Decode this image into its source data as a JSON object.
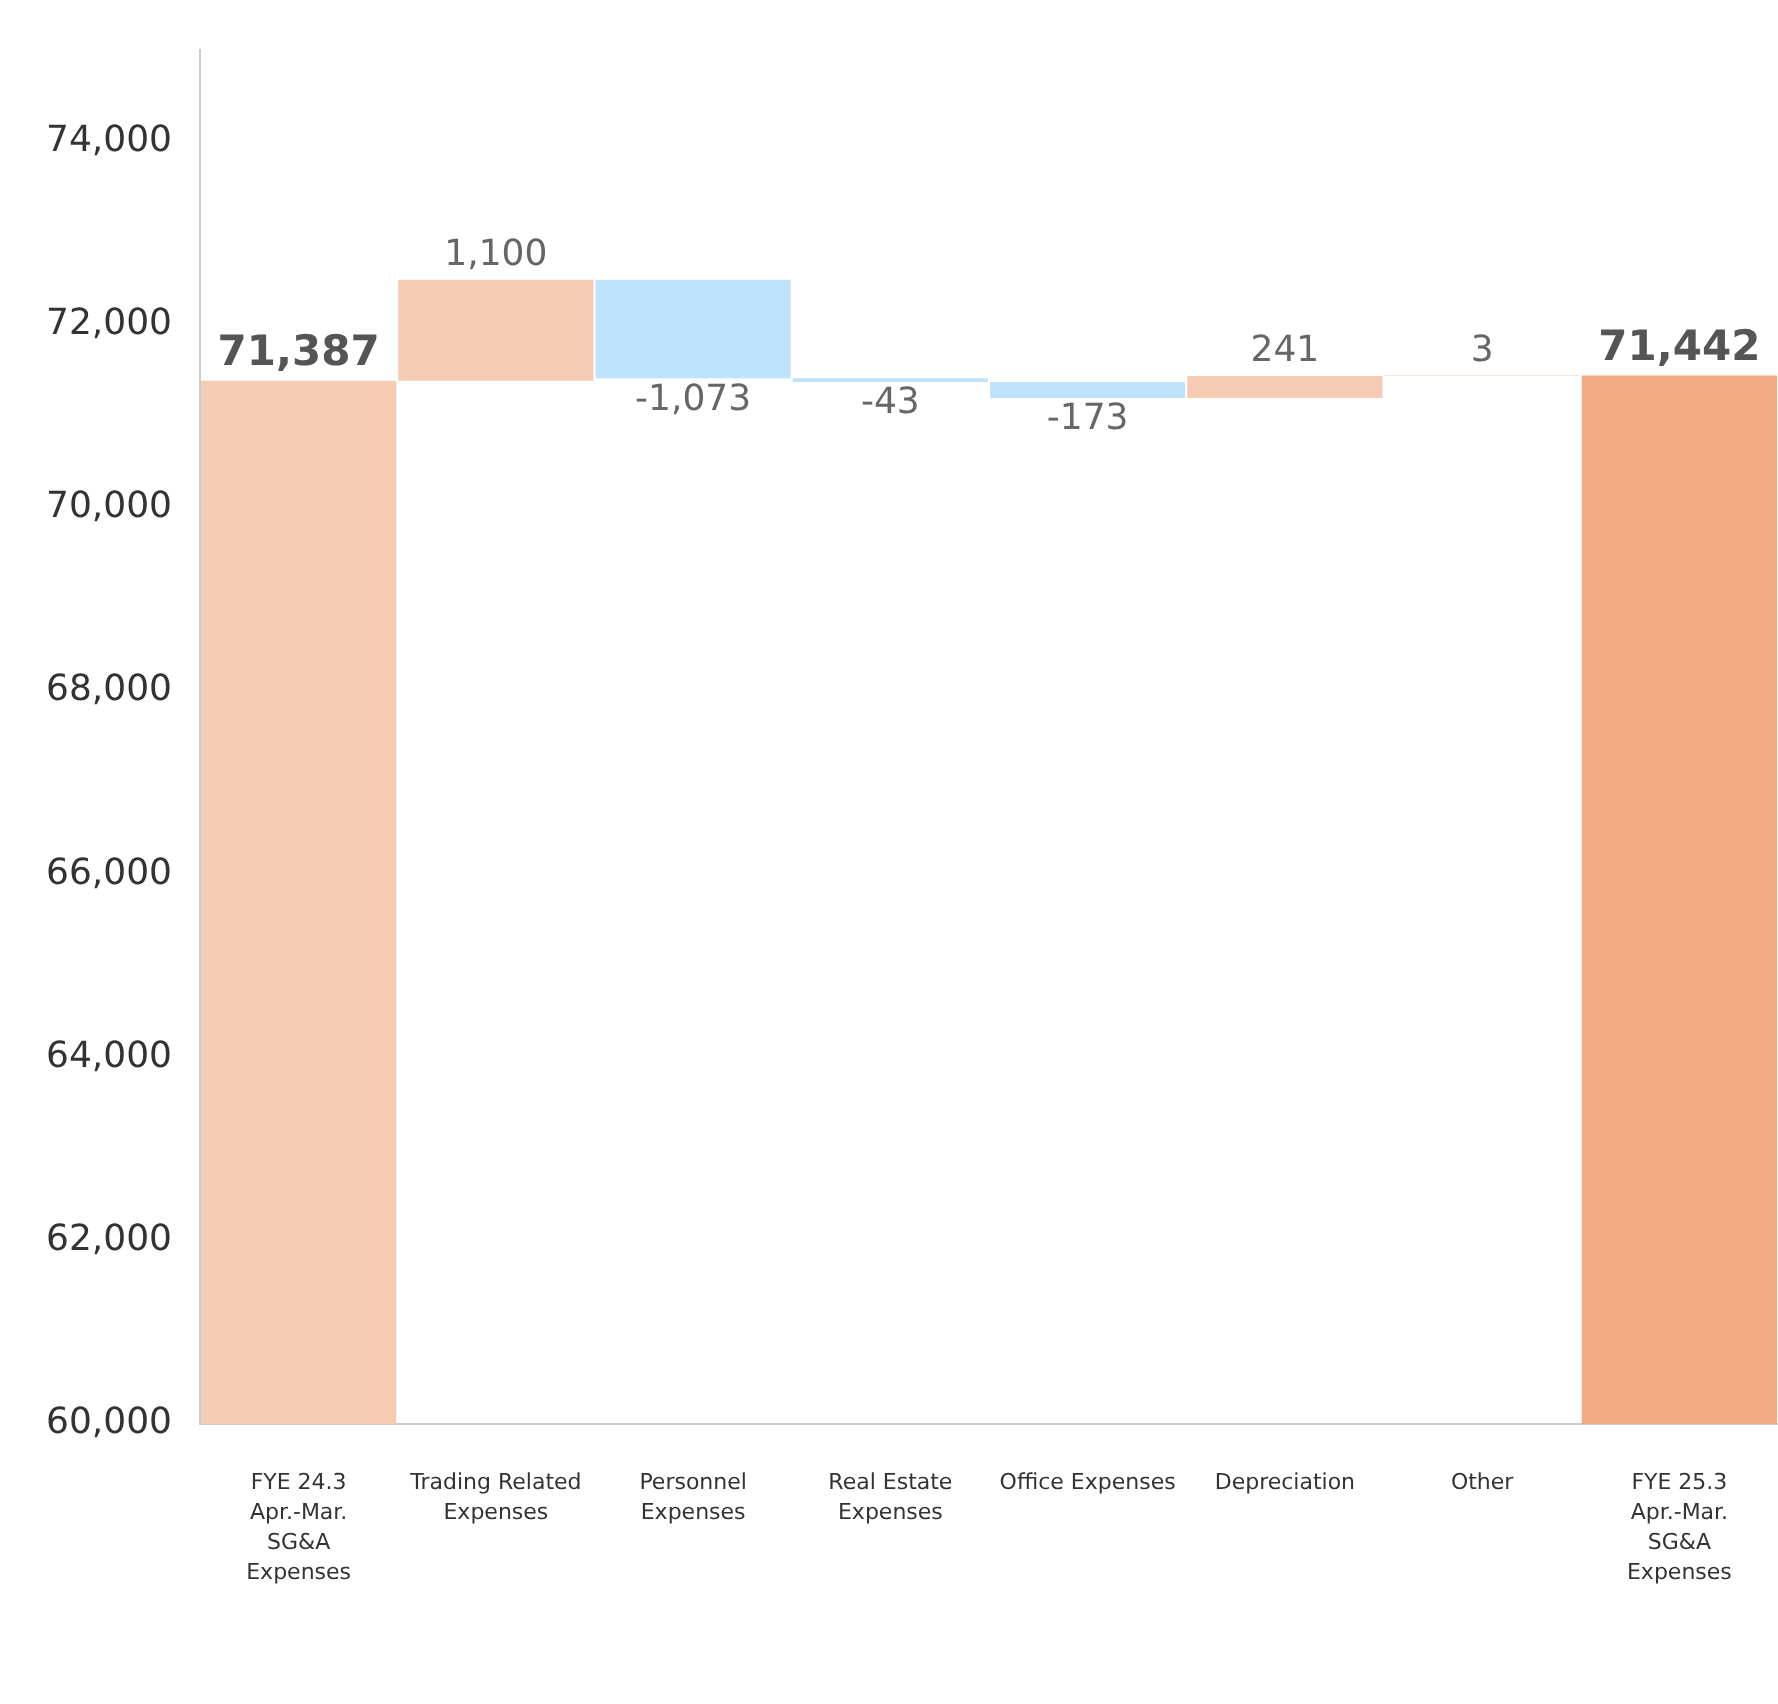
{
  "chart_data": {
    "type": "bar",
    "categories": [
      "FYE 24.3\nApr.-Mar.\nSG&A\nExpenses",
      "Trading Related\nExpenses",
      "Personnel\nExpenses",
      "Real Estate\nExpenses",
      "Office Expenses",
      "Depreciation",
      "Other",
      "FYE 25.3\nApr.-Mar.\nSG&A\nExpenses"
    ],
    "values": [
      71387,
      1100,
      -1073,
      -43,
      -173,
      241,
      3,
      71442
    ],
    "base": [
      null,
      71387,
      72487,
      71414,
      71371,
      71198,
      71439,
      null
    ],
    "colors": [
      "#f5cbb3",
      "#f5cbb3",
      "#bfe3fb",
      "#bfe3fb",
      "#bfe3fb",
      "#f5cbb3",
      "#f5cbb3",
      "#f2aa84"
    ],
    "ylim": [
      60000,
      75000
    ],
    "value_labels": [
      "71,387",
      "1,100",
      "-1,073",
      "-43",
      "-173",
      "241",
      "3",
      "71,442"
    ],
    "yticks": [
      {
        "value": 60000,
        "label": "60,000"
      },
      {
        "value": 62000,
        "label": "62,000"
      },
      {
        "value": 64000,
        "label": "64,000"
      },
      {
        "value": 66000,
        "label": "66,000"
      },
      {
        "value": 68000,
        "label": "68,000"
      },
      {
        "value": 70000,
        "label": "70,000"
      },
      {
        "value": 72000,
        "label": "72,000"
      },
      {
        "value": 74000,
        "label": "74,000"
      }
    ],
    "grid": false,
    "legend": false
  }
}
